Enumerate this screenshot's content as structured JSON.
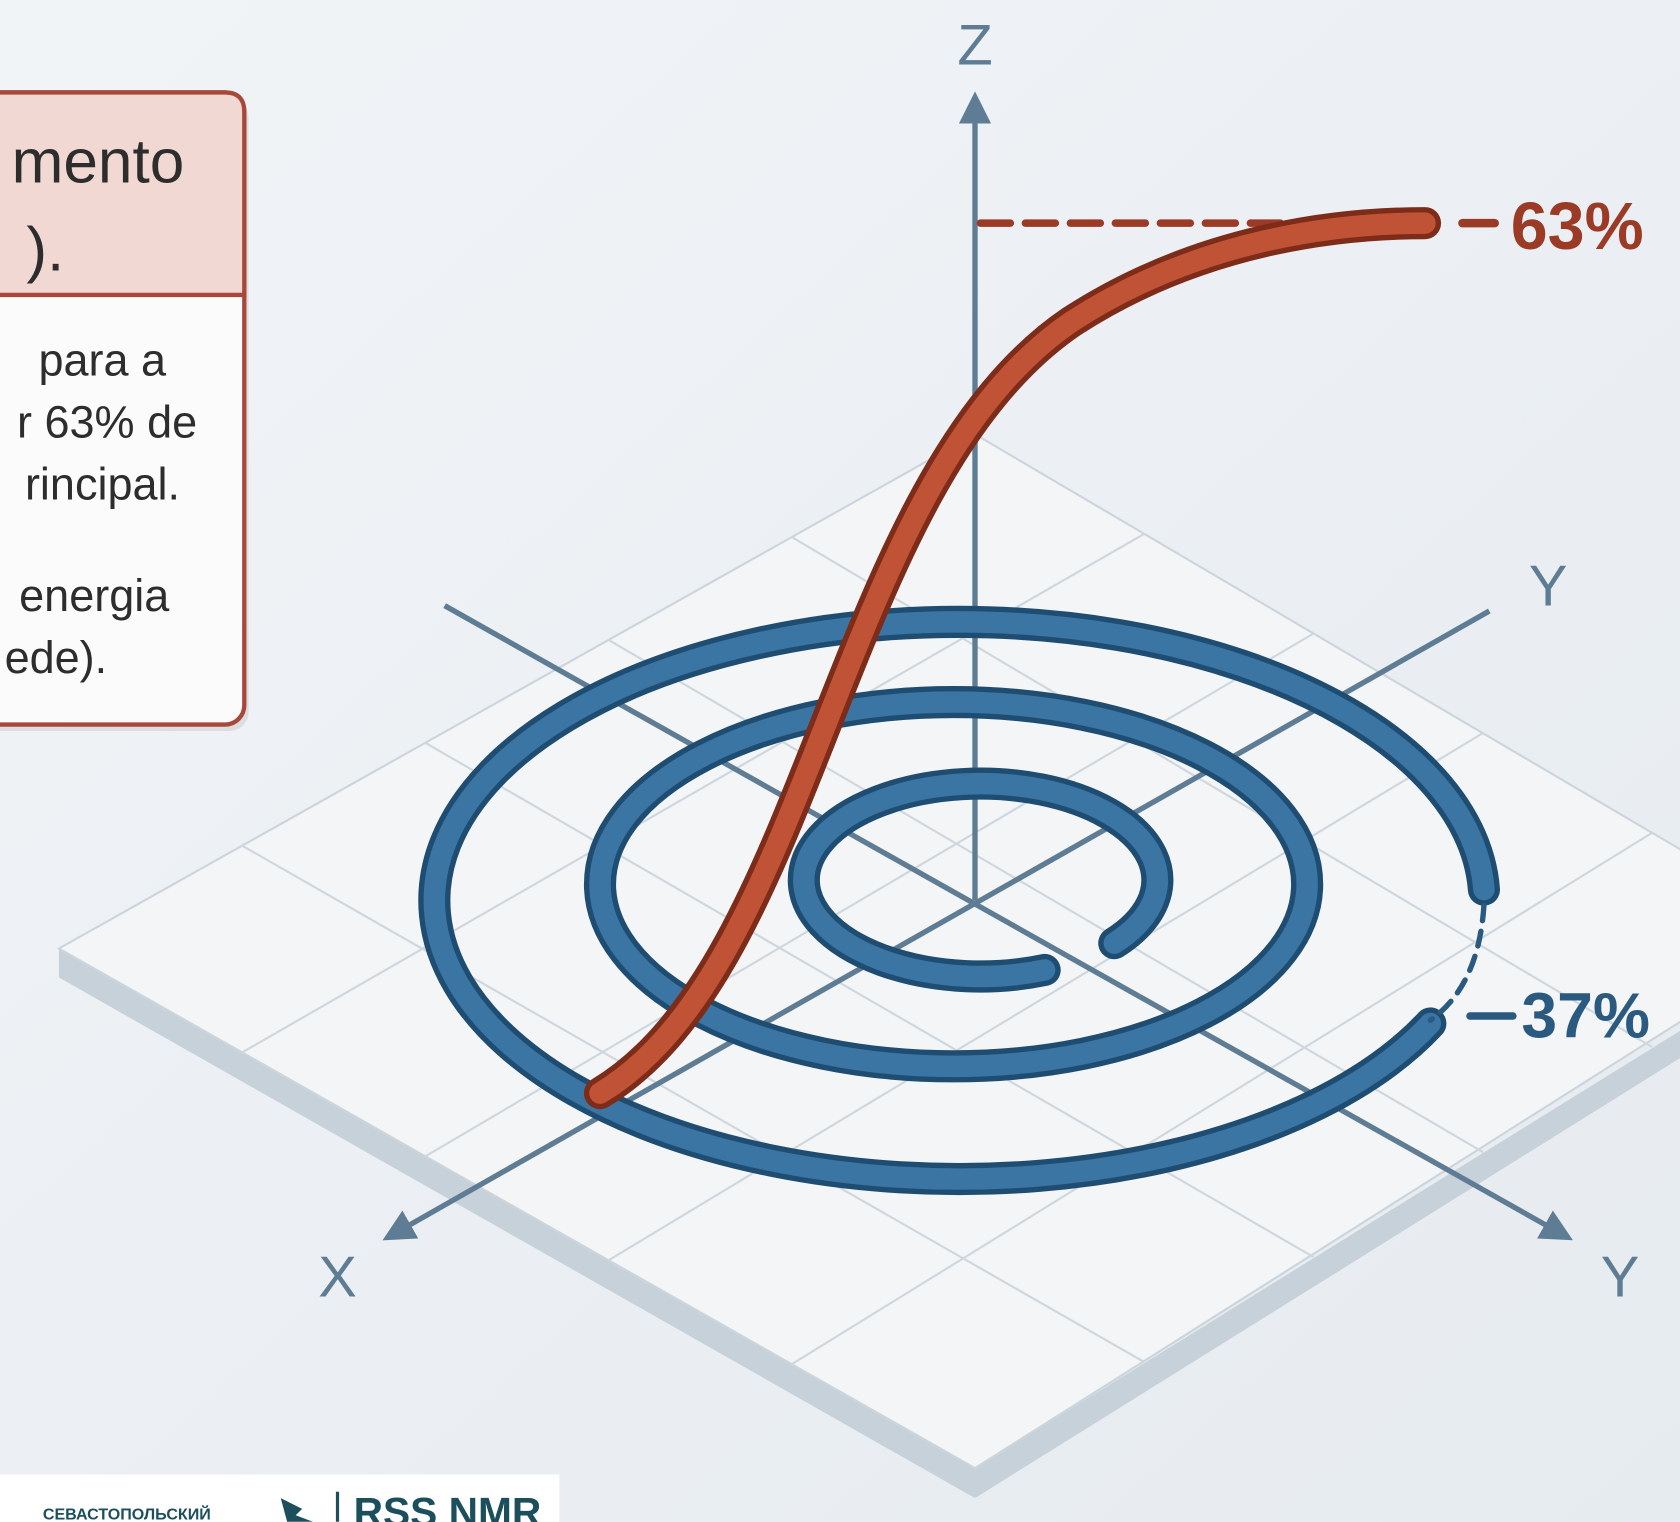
{
  "callout": {
    "title_lines": [
      "mento",
      ")."
    ],
    "body_lines": [
      "para a",
      "r 63% de",
      "rincipal.",
      "energia",
      "ede)."
    ]
  },
  "axes": {
    "z": "Z",
    "y_upper": "Y",
    "y_lower": "Y",
    "x": "X"
  },
  "labels": {
    "top": "63%",
    "gap": "37%"
  },
  "footer": {
    "left": "СЕВАСТОПОЛЬСКИЙ",
    "right": "RSS NMR"
  }
}
